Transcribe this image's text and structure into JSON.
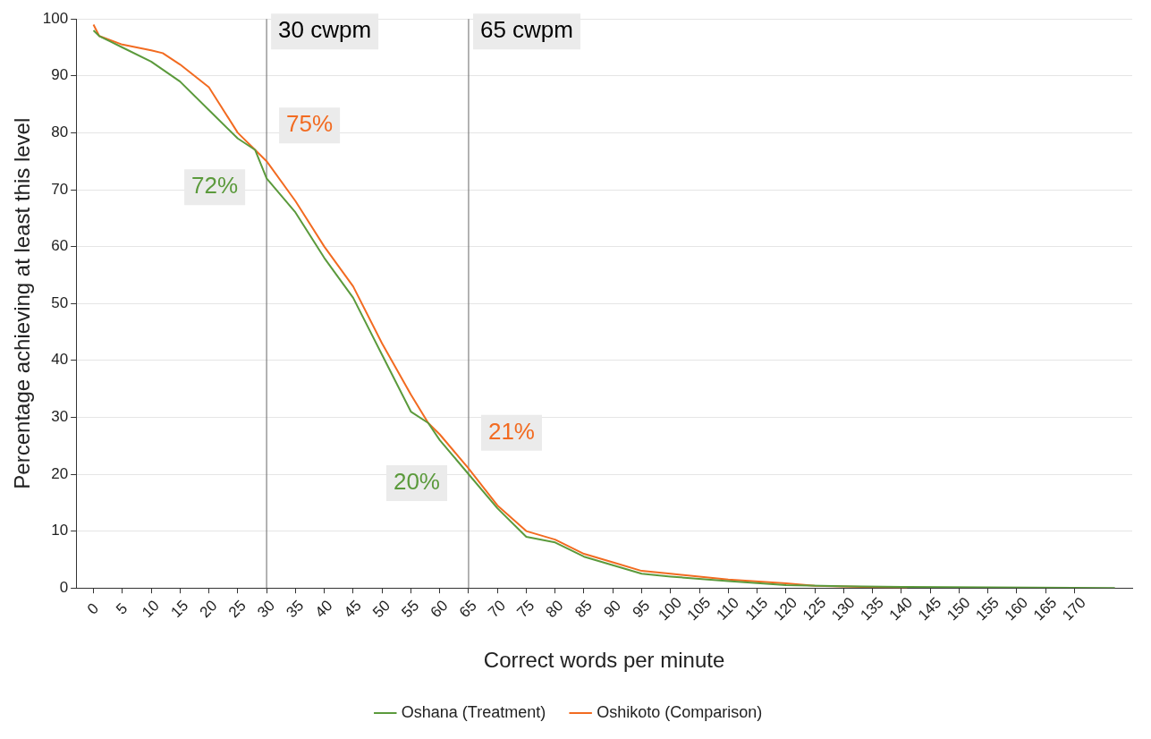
{
  "chart_data": {
    "type": "line",
    "xlabel": "Correct words per minute",
    "ylabel": "Percentage achieving at least this level",
    "xlim": [
      -3,
      180
    ],
    "xticks": [
      0,
      5,
      10,
      15,
      20,
      25,
      30,
      35,
      40,
      45,
      50,
      55,
      60,
      65,
      70,
      75,
      80,
      85,
      90,
      95,
      100,
      105,
      110,
      115,
      120,
      125,
      130,
      135,
      140,
      145,
      150,
      155,
      160,
      165,
      170
    ],
    "ylim": [
      0,
      100
    ],
    "yticks": [
      0,
      10,
      20,
      30,
      40,
      50,
      60,
      70,
      80,
      90,
      100
    ],
    "grid": "y",
    "legend": "bottom",
    "marker": "none",
    "line_style": "solid",
    "series": [
      {
        "name": "Oshana (Treatment)",
        "color": "#5b9a3c",
        "x": [
          0,
          1,
          3,
          5,
          10,
          15,
          20,
          25,
          28,
          30,
          35,
          40,
          45,
          50,
          55,
          58,
          60,
          65,
          70,
          75,
          80,
          85,
          90,
          95,
          100,
          110,
          120,
          130,
          140,
          177
        ],
        "values": [
          98,
          97,
          96,
          95,
          92.5,
          89,
          84,
          79,
          77,
          72,
          66,
          58,
          51,
          41,
          31,
          29,
          26,
          20,
          14,
          9,
          8,
          5.5,
          4,
          2.5,
          2,
          1.2,
          0.5,
          0.3,
          0.2,
          0
        ]
      },
      {
        "name": "Oshikoto (Comparison)",
        "color": "#f26b21",
        "x": [
          0,
          1,
          5,
          10,
          12,
          15,
          20,
          25,
          28,
          30,
          35,
          40,
          45,
          50,
          55,
          58,
          60,
          65,
          70,
          75,
          80,
          85,
          90,
          95,
          100,
          110,
          120,
          125,
          141
        ],
        "values": [
          99,
          97,
          95.5,
          94.5,
          94,
          92,
          88,
          80,
          77,
          75,
          68,
          60,
          53,
          43,
          34,
          29,
          27,
          21,
          14.5,
          10,
          8.5,
          6,
          4.5,
          3,
          2.5,
          1.5,
          0.8,
          0.4,
          0
        ]
      }
    ],
    "ref_lines": [
      {
        "axis": "x",
        "value": 30,
        "label": "30 cwpm",
        "color": "#808080"
      },
      {
        "axis": "x",
        "value": 65,
        "label": "65 cwpm",
        "color": "#808080"
      }
    ],
    "annotations": [
      "72%",
      "75%",
      "20%",
      "21%"
    ]
  }
}
